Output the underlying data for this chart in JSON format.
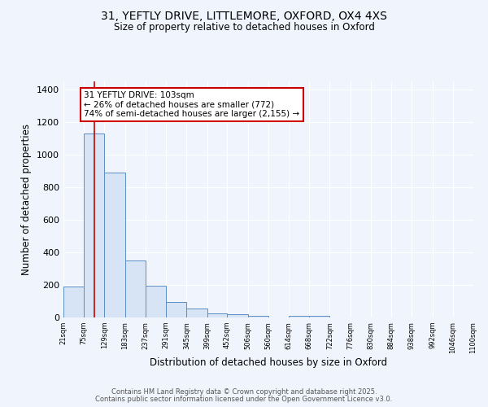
{
  "title_line1": "31, YEFTLY DRIVE, LITTLEMORE, OXFORD, OX4 4XS",
  "title_line2": "Size of property relative to detached houses in Oxford",
  "xlabel": "Distribution of detached houses by size in Oxford",
  "ylabel": "Number of detached properties",
  "bar_edges": [
    21,
    75,
    129,
    183,
    237,
    291,
    345,
    399,
    452,
    506,
    560,
    614,
    668,
    722,
    776,
    830,
    884,
    938,
    992,
    1046,
    1100
  ],
  "bar_heights": [
    190,
    1130,
    890,
    350,
    195,
    95,
    55,
    25,
    20,
    12,
    0,
    10,
    8,
    0,
    0,
    0,
    0,
    0,
    0,
    0
  ],
  "bar_color": "#d6e4f5",
  "bar_edge_color": "#5b8ec4",
  "property_line_x": 103,
  "property_line_color": "#cc0000",
  "annotation_text": "31 YEFTLY DRIVE: 103sqm\n← 26% of detached houses are smaller (772)\n74% of semi-detached houses are larger (2,155) →",
  "annotation_box_color": "#ffffff",
  "annotation_box_edge_color": "#cc0000",
  "ylim": [
    0,
    1450
  ],
  "yticks": [
    0,
    200,
    400,
    600,
    800,
    1000,
    1200,
    1400
  ],
  "background_color": "#f0f4fc",
  "grid_color": "#ffffff",
  "footer_line1": "Contains HM Land Registry data © Crown copyright and database right 2025.",
  "footer_line2": "Contains public sector information licensed under the Open Government Licence v3.0.",
  "tick_labels": [
    "21sqm",
    "75sqm",
    "129sqm",
    "183sqm",
    "237sqm",
    "291sqm",
    "345sqm",
    "399sqm",
    "452sqm",
    "506sqm",
    "560sqm",
    "614sqm",
    "668sqm",
    "722sqm",
    "776sqm",
    "830sqm",
    "884sqm",
    "938sqm",
    "992sqm",
    "1046sqm",
    "1100sqm"
  ]
}
